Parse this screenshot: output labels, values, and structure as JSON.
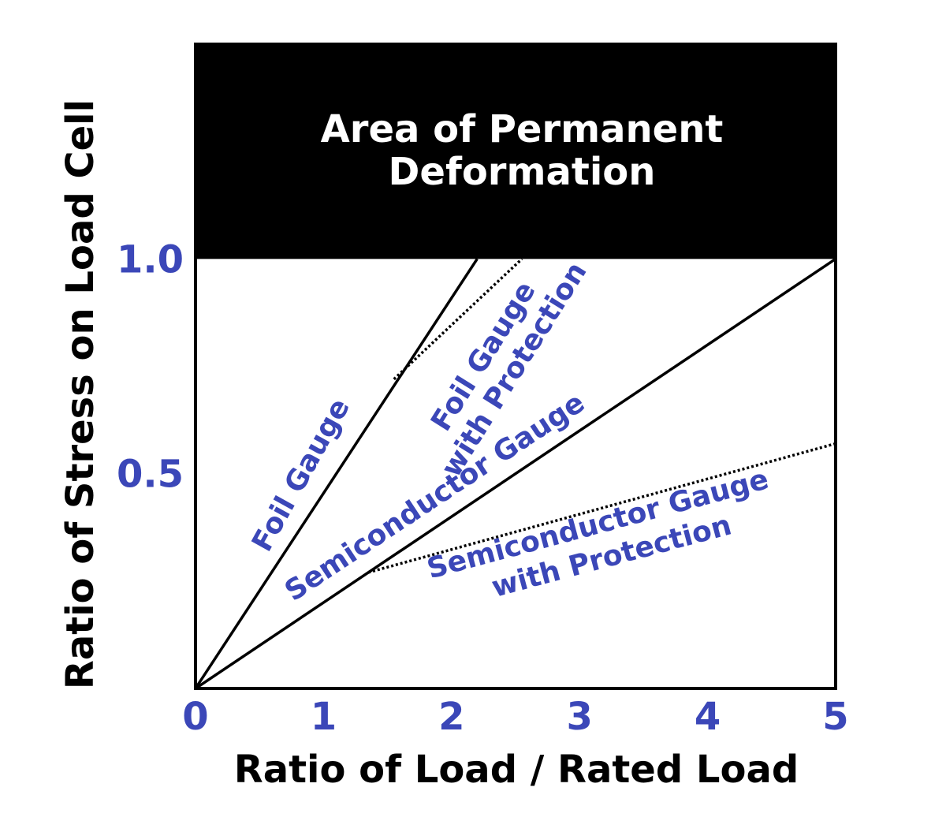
{
  "colors": {
    "accent": "#3b47b8",
    "line": "#000000",
    "region": "#000000",
    "background": "#ffffff"
  },
  "chart_data": {
    "type": "line",
    "xlabel": "Ratio of Load / Rated Load",
    "ylabel": "Ratio of Stress on Load Cell",
    "xlim": [
      0,
      5
    ],
    "ylim": [
      0,
      1.5
    ],
    "x_ticks": [
      {
        "value": 0,
        "label": "0"
      },
      {
        "value": 1,
        "label": "1"
      },
      {
        "value": 2,
        "label": "2"
      },
      {
        "value": 3,
        "label": "3"
      },
      {
        "value": 4,
        "label": "4"
      },
      {
        "value": 5,
        "label": "5"
      }
    ],
    "y_ticks": [
      {
        "value": 0.5,
        "label": "0.5"
      },
      {
        "value": 1.0,
        "label": "1.0"
      }
    ],
    "grid": false,
    "region": {
      "label_line1": "Area of Permanent",
      "label_line2": "Deformation",
      "y_from": 1.0,
      "y_to": 1.5
    },
    "series": [
      {
        "name": "Foil Gauge",
        "style": "solid",
        "x": [
          0,
          2.2
        ],
        "y": [
          0,
          1.0
        ]
      },
      {
        "name": "Foil Gauge with Protection",
        "style": "dotted",
        "x": [
          1.55,
          2.55
        ],
        "y": [
          0.72,
          1.0
        ]
      },
      {
        "name": "Semiconductor Gauge",
        "style": "solid",
        "x": [
          0,
          5
        ],
        "y": [
          0,
          1.0
        ]
      },
      {
        "name": "Semiconductor Gauge with Protection",
        "style": "dotted",
        "x": [
          1.35,
          5
        ],
        "y": [
          0.27,
          0.57
        ]
      }
    ],
    "annotations": [
      {
        "id": "foil",
        "lines": [
          "Foil Gauge"
        ]
      },
      {
        "id": "foil-protect",
        "lines": [
          "Foil Gauge",
          "with Protection"
        ]
      },
      {
        "id": "semi",
        "lines": [
          "Semiconductor Gauge"
        ]
      },
      {
        "id": "semi-protect",
        "lines": [
          "Semiconductor Gauge",
          "with Protection"
        ]
      }
    ]
  }
}
